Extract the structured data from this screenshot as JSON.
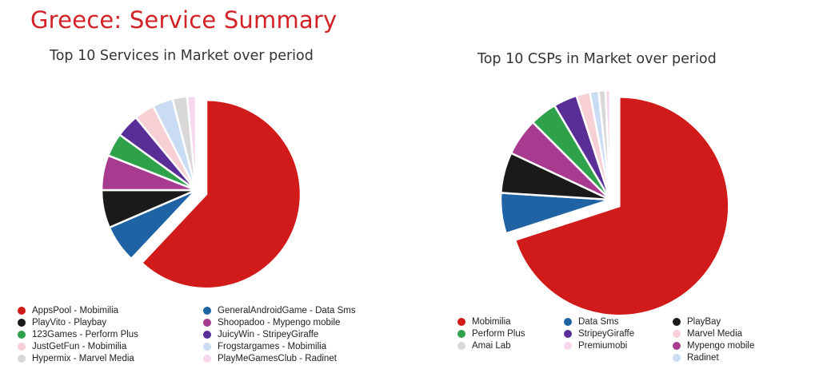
{
  "page": {
    "title": "Greece: Service Summary"
  },
  "chart_data": [
    {
      "type": "pie",
      "title": "Top 10 Services in Market over period",
      "legend_position": "bottom",
      "series": [
        {
          "name": "AppsPool - Mobimilia",
          "value": 62.0,
          "color": "#d11a1a"
        },
        {
          "name": "GeneralAndroidGame - Data Sms",
          "value": 6.5,
          "color": "#1f63a4"
        },
        {
          "name": "PlayVito - Playbay",
          "value": 6.5,
          "color": "#1a1a1a"
        },
        {
          "name": "Shoopadoo - Mypengo mobile",
          "value": 6.0,
          "color": "#a83b8f"
        },
        {
          "name": "123Games - Perform Plus",
          "value": 4.0,
          "color": "#2ea14a"
        },
        {
          "name": "JuicyWin - StripeyGiraffe",
          "value": 4.0,
          "color": "#5a2e97"
        },
        {
          "name": "JustGetFun - Mobimilia",
          "value": 3.5,
          "color": "#f7d0d6"
        },
        {
          "name": "Frogstargames - Mobimilia",
          "value": 3.5,
          "color": "#c9dcf4"
        },
        {
          "name": "Hypermix - Marvel Media",
          "value": 2.5,
          "color": "#d8d8d8"
        },
        {
          "name": "PlayMeGamesClub - Radinet",
          "value": 1.5,
          "color": "#f6d7ec"
        }
      ]
    },
    {
      "type": "pie",
      "title": "Top 10 CSPs in Market over period",
      "legend_position": "bottom",
      "series": [
        {
          "name": "Mobimilia",
          "value": 70.0,
          "color": "#d11a1a"
        },
        {
          "name": "Data Sms",
          "value": 6.0,
          "color": "#1f63a4"
        },
        {
          "name": "PlayBay",
          "value": 6.0,
          "color": "#1a1a1a"
        },
        {
          "name": "Mypengo mobile",
          "value": 5.5,
          "color": "#a83b8f"
        },
        {
          "name": "Perform Plus",
          "value": 4.0,
          "color": "#2ea14a"
        },
        {
          "name": "StripeyGiraffe",
          "value": 3.5,
          "color": "#5a2e97"
        },
        {
          "name": "Marvel Media",
          "value": 2.0,
          "color": "#f7d0d6"
        },
        {
          "name": "Radinet",
          "value": 1.3,
          "color": "#c9dcf4"
        },
        {
          "name": "Amai Lab",
          "value": 1.0,
          "color": "#d8d8d8"
        },
        {
          "name": "Premiumobi",
          "value": 0.7,
          "color": "#f6d7ec"
        }
      ]
    }
  ],
  "legends": [
    {
      "items": [
        {
          "label": "AppsPool - Mobimilia",
          "color": "#d11a1a"
        },
        {
          "label": "PlayVito - Playbay",
          "color": "#1a1a1a"
        },
        {
          "label": "123Games - Perform Plus",
          "color": "#2ea14a"
        },
        {
          "label": "JustGetFun - Mobimilia",
          "color": "#f7d0d6"
        },
        {
          "label": "Hypermix - Marvel Media",
          "color": "#d8d8d8"
        },
        {
          "label": "GeneralAndroidGame - Data Sms",
          "color": "#1f63a4"
        },
        {
          "label": "Shoopadoo - Mypengo mobile",
          "color": "#a83b8f"
        },
        {
          "label": "JuicyWin - StripeyGiraffe",
          "color": "#5a2e97"
        },
        {
          "label": "Frogstargames - Mobimilia",
          "color": "#c9dcf4"
        },
        {
          "label": "PlayMeGamesClub - Radinet",
          "color": "#f6d7ec"
        }
      ]
    },
    {
      "items": [
        {
          "label": "Mobimilia",
          "color": "#d11a1a"
        },
        {
          "label": "Data Sms",
          "color": "#1f63a4"
        },
        {
          "label": "PlayBay",
          "color": "#1a1a1a"
        },
        {
          "label": "Perform Plus",
          "color": "#2ea14a"
        },
        {
          "label": "StripeyGiraffe",
          "color": "#5a2e97"
        },
        {
          "label": "Marvel Media",
          "color": "#f7d0d6"
        },
        {
          "label": "Amai Lab",
          "color": "#d8d8d8"
        },
        {
          "label": "Premiumobi",
          "color": "#f6d7ec"
        },
        {
          "label": "Mypengo mobile",
          "color": "#a83b8f"
        },
        {
          "label": "",
          "color": ""
        },
        {
          "label": "",
          "color": ""
        },
        {
          "label": "Radinet",
          "color": "#c9dcf4"
        }
      ]
    }
  ]
}
